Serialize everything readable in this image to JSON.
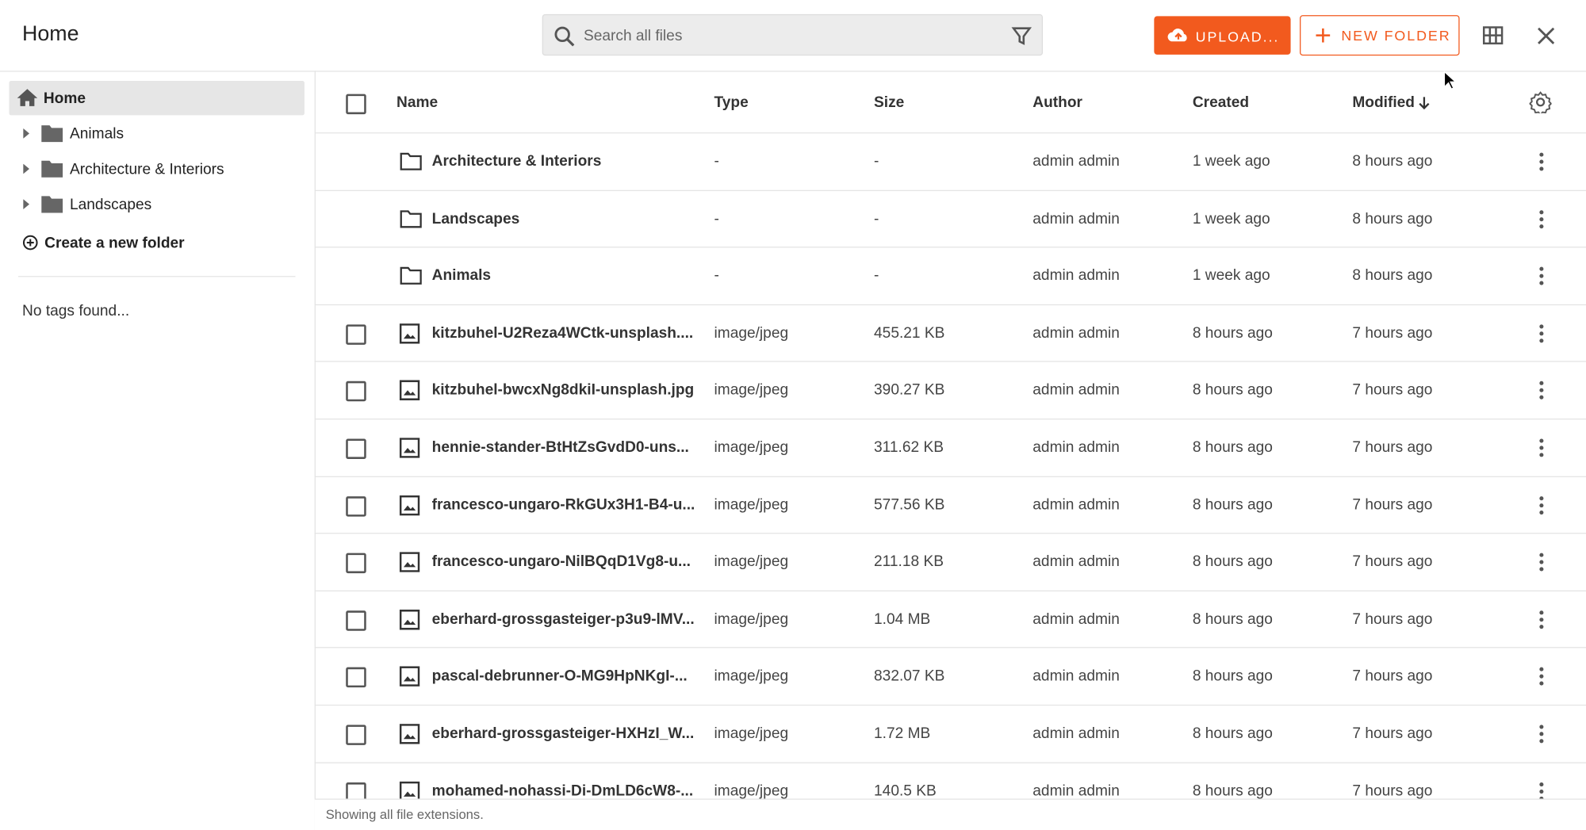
{
  "header": {
    "title": "Home",
    "search_placeholder": "Search all files",
    "upload": "UPLOAD...",
    "new_folder": "NEW FOLDER"
  },
  "sidebar": {
    "home": "Home",
    "tree": [
      "Animals",
      "Architecture & Interiors",
      "Landscapes"
    ],
    "create": "Create a new folder",
    "tags": "No tags found..."
  },
  "table": {
    "columns": [
      "Name",
      "Type",
      "Size",
      "Author",
      "Created",
      "Modified"
    ],
    "folders": [
      [
        "Architecture & Interiors",
        "-",
        "-",
        "admin admin",
        "1 week ago",
        "8 hours ago"
      ],
      [
        "Landscapes",
        "-",
        "-",
        "admin admin",
        "1 week ago",
        "8 hours ago"
      ],
      [
        "Animals",
        "-",
        "-",
        "admin admin",
        "1 week ago",
        "8 hours ago"
      ]
    ],
    "files": [
      [
        "kitzbuhel-U2Reza4WCtk-unsplash....",
        "image/jpeg",
        "455.21 KB",
        "admin admin",
        "8 hours ago",
        "7 hours ago"
      ],
      [
        "kitzbuhel-bwcxNg8dkiI-unsplash.jpg",
        "image/jpeg",
        "390.27 KB",
        "admin admin",
        "8 hours ago",
        "7 hours ago"
      ],
      [
        "hennie-stander-BtHtZsGvdD0-uns...",
        "image/jpeg",
        "311.62 KB",
        "admin admin",
        "8 hours ago",
        "7 hours ago"
      ],
      [
        "francesco-ungaro-RkGUx3H1-B4-u...",
        "image/jpeg",
        "577.56 KB",
        "admin admin",
        "8 hours ago",
        "7 hours ago"
      ],
      [
        "francesco-ungaro-NilBQqD1Vg8-u...",
        "image/jpeg",
        "211.18 KB",
        "admin admin",
        "8 hours ago",
        "7 hours ago"
      ],
      [
        "eberhard-grossgasteiger-p3u9-lMV...",
        "image/jpeg",
        "1.04 MB",
        "admin admin",
        "8 hours ago",
        "7 hours ago"
      ],
      [
        "pascal-debrunner-O-MG9HpNKgI-...",
        "image/jpeg",
        "832.07 KB",
        "admin admin",
        "8 hours ago",
        "7 hours ago"
      ],
      [
        "eberhard-grossgasteiger-HXHzI_W...",
        "image/jpeg",
        "1.72 MB",
        "admin admin",
        "8 hours ago",
        "7 hours ago"
      ],
      [
        "mohamed-nohassi-Di-DmLD6cW8-...",
        "image/jpeg",
        "140.5 KB",
        "admin admin",
        "8 hours ago",
        "7 hours ago"
      ]
    ]
  },
  "footer": "Showing all file extensions."
}
